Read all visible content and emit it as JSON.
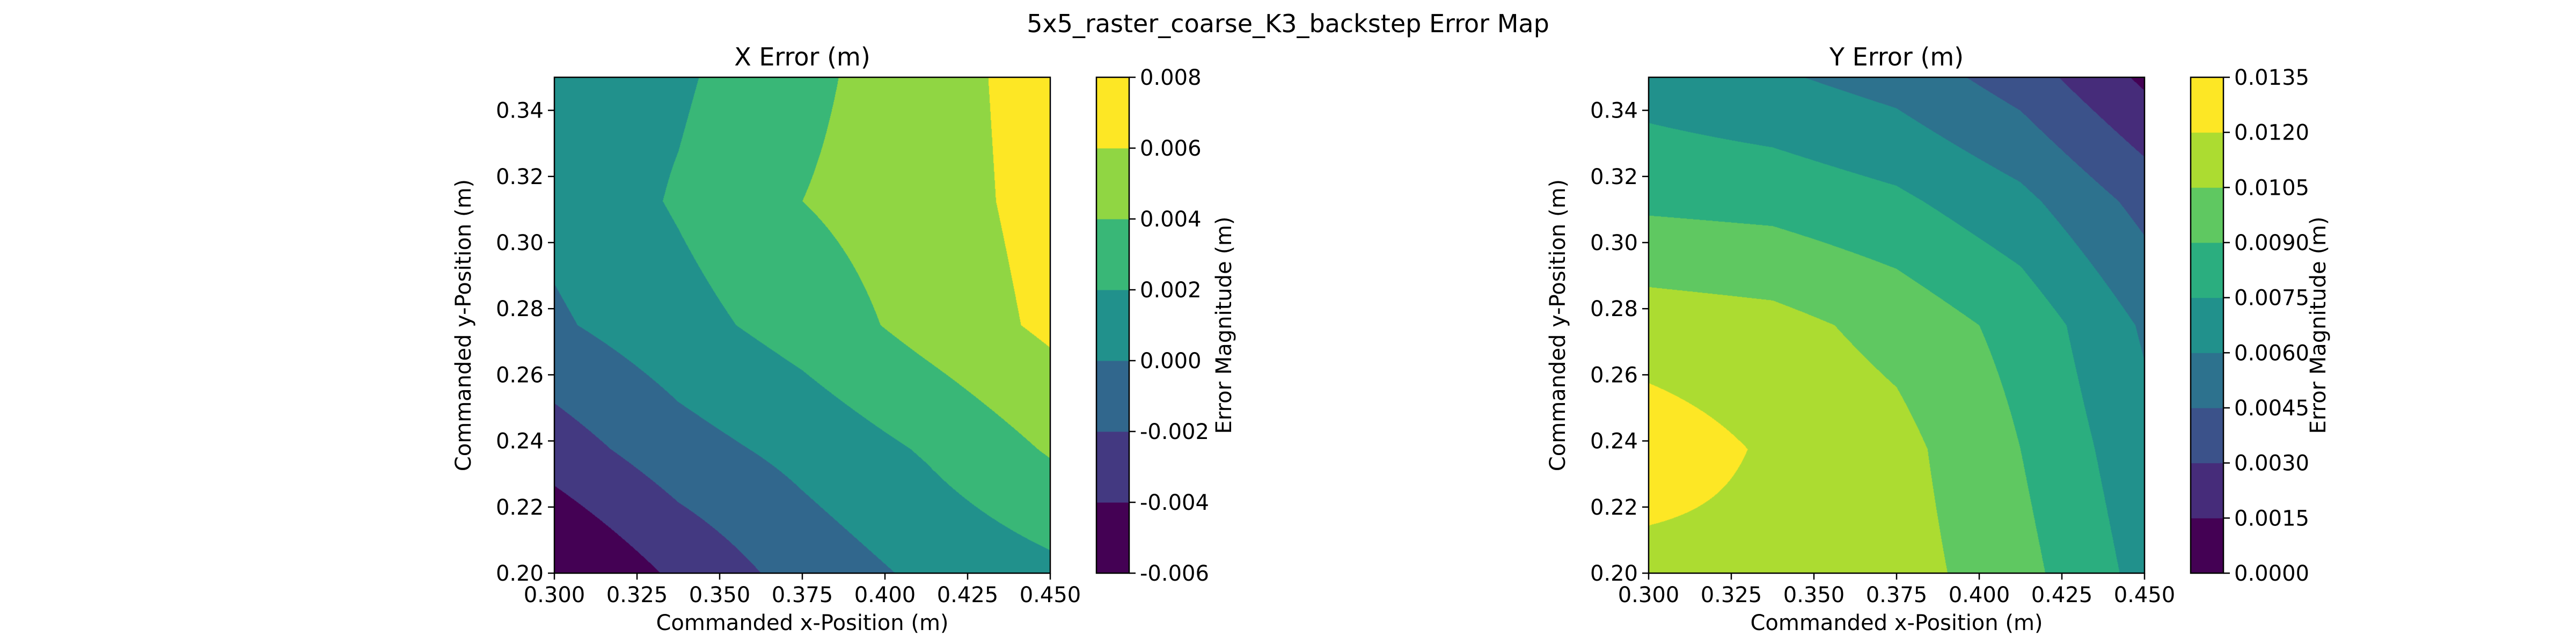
{
  "figure": {
    "title": "5x5_raster_coarse_K3_backstep Error Map"
  },
  "chart_data": [
    {
      "type": "heatmap",
      "title": "X Error (m)",
      "xlabel": "Commanded x-Position (m)",
      "ylabel": "Commanded y-Position (m)",
      "colorbar_label": "Error Magnitude (m)",
      "x": [
        0.3,
        0.3375,
        0.375,
        0.4125,
        0.45
      ],
      "y": [
        0.2,
        0.2375,
        0.275,
        0.3125,
        0.35
      ],
      "z": [
        [
          -0.0064,
          -0.0036,
          -0.0012,
          0.0004,
          0.0015
        ],
        [
          -0.003,
          -0.0008,
          0.0006,
          0.0022,
          0.0042
        ],
        [
          -0.0003,
          0.0013,
          0.0028,
          0.0047,
          0.0064
        ],
        [
          0.0006,
          0.0022,
          0.004,
          0.0051,
          0.0067
        ],
        [
          0.001,
          0.0017,
          0.0035,
          0.0052,
          0.0068
        ]
      ],
      "levels": [
        -0.006,
        -0.004,
        -0.002,
        0.0,
        0.002,
        0.004,
        0.006,
        0.008
      ],
      "xticks": [
        "0.300",
        "0.325",
        "0.350",
        "0.375",
        "0.400",
        "0.425",
        "0.450"
      ],
      "xtick_values": [
        0.3,
        0.325,
        0.35,
        0.375,
        0.4,
        0.425,
        0.45
      ],
      "yticks": [
        "0.20",
        "0.22",
        "0.24",
        "0.26",
        "0.28",
        "0.30",
        "0.32",
        "0.34"
      ],
      "ytick_values": [
        0.2,
        0.22,
        0.24,
        0.26,
        0.28,
        0.3,
        0.32,
        0.34
      ],
      "cbar_ticks": [
        "-0.006",
        "-0.004",
        "-0.002",
        "0.000",
        "0.002",
        "0.004",
        "0.006",
        "0.008"
      ],
      "xlim": [
        0.3,
        0.45
      ],
      "ylim": [
        0.2,
        0.35
      ],
      "colormap": "viridis"
    },
    {
      "type": "heatmap",
      "title": "Y Error (m)",
      "xlabel": "Commanded x-Position (m)",
      "ylabel": "Commanded y-Position (m)",
      "colorbar_label": "Error Magnitude (m)",
      "x": [
        0.3,
        0.3375,
        0.375,
        0.4125,
        0.45
      ],
      "y": [
        0.2,
        0.2375,
        0.275,
        0.3125,
        0.35
      ],
      "z": [
        [
          0.0115,
          0.0116,
          0.0112,
          0.0095,
          0.007
        ],
        [
          0.0128,
          0.0118,
          0.011,
          0.009,
          0.0065
        ],
        [
          0.0113,
          0.011,
          0.01,
          0.0085,
          0.0058
        ],
        [
          0.0087,
          0.0085,
          0.0078,
          0.0064,
          0.004
        ],
        [
          0.0068,
          0.0062,
          0.0054,
          0.0038,
          0.0012
        ]
      ],
      "levels": [
        0.0,
        0.0015,
        0.003,
        0.0045,
        0.006,
        0.0075,
        0.009,
        0.0105,
        0.012,
        0.0135
      ],
      "xticks": [
        "0.300",
        "0.325",
        "0.350",
        "0.375",
        "0.400",
        "0.425",
        "0.450"
      ],
      "xtick_values": [
        0.3,
        0.325,
        0.35,
        0.375,
        0.4,
        0.425,
        0.45
      ],
      "yticks": [
        "0.20",
        "0.22",
        "0.24",
        "0.26",
        "0.28",
        "0.30",
        "0.32",
        "0.34"
      ],
      "ytick_values": [
        0.2,
        0.22,
        0.24,
        0.26,
        0.28,
        0.3,
        0.32,
        0.34
      ],
      "cbar_ticks": [
        "0.0000",
        "0.0015",
        "0.0030",
        "0.0045",
        "0.0060",
        "0.0075",
        "0.0090",
        "0.0105",
        "0.0120",
        "0.0135"
      ],
      "xlim": [
        0.3,
        0.45
      ],
      "ylim": [
        0.2,
        0.35
      ],
      "colormap": "viridis"
    }
  ]
}
